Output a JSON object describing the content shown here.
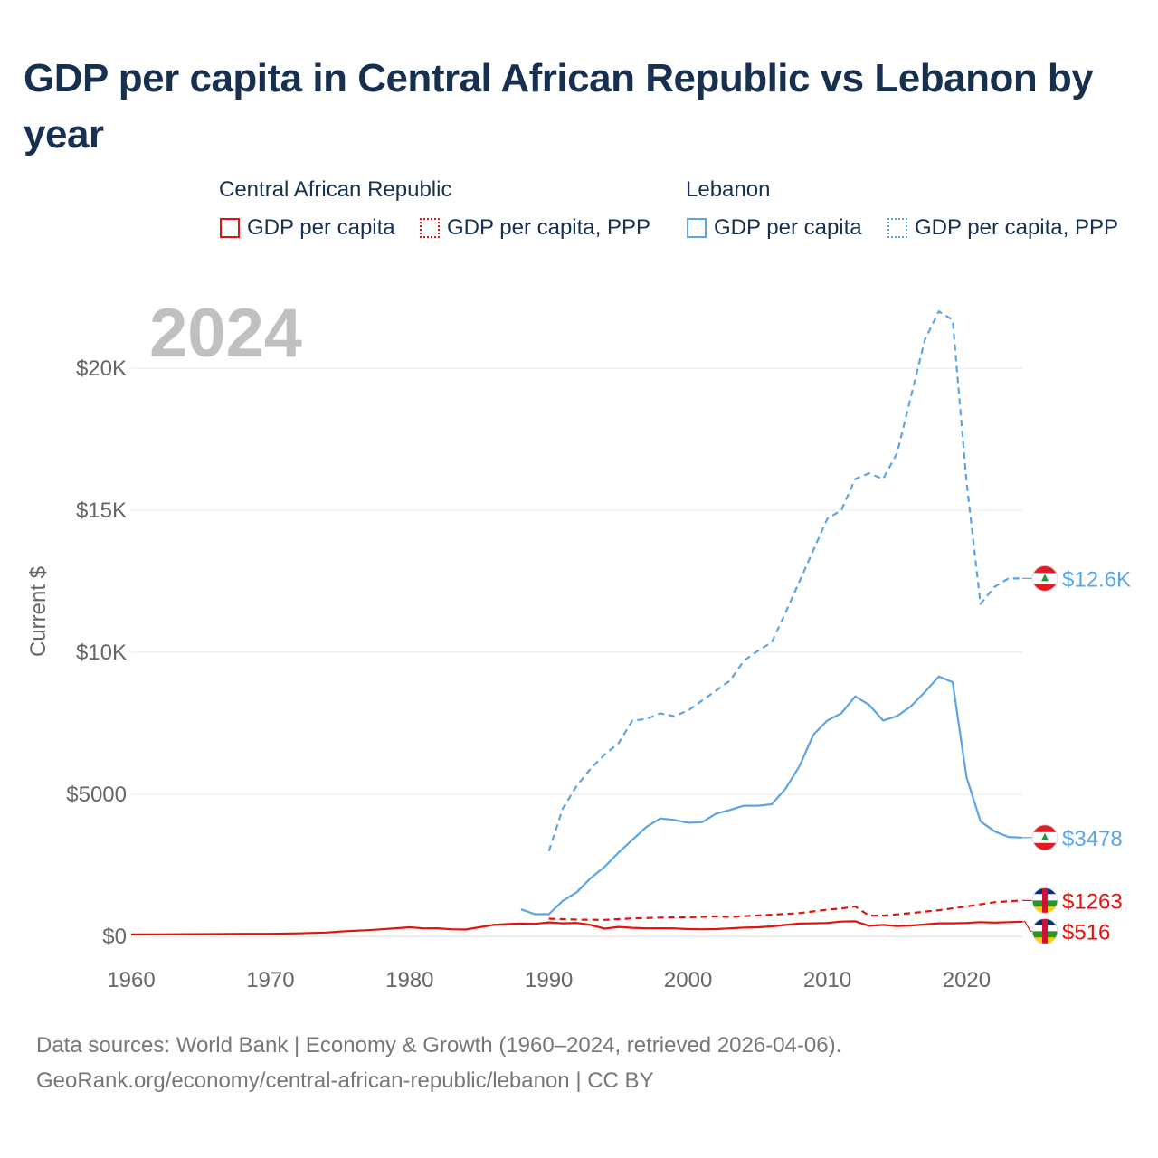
{
  "title": "GDP per capita in Central African Republic vs Lebanon by year",
  "legend": {
    "car_group": "Central African Republic",
    "leb_group": "Lebanon",
    "car_gdp": "GDP per capita",
    "car_ppp": "GDP per capita, PPP",
    "leb_gdp": "GDP per capita",
    "leb_ppp": "GDP per capita, PPP"
  },
  "colors": {
    "car": "#e3120b",
    "lebanon": "#5ba4e5",
    "year_watermark": "#c0c0c0",
    "axis_text": "#666666",
    "title": "#17304f"
  },
  "source": {
    "line1": "Data sources: World Bank | Economy & Growth (1960–2024, retrieved 2026-04-06).",
    "line2": "GeoRank.org/economy/central-african-republic/lebanon | CC BY"
  },
  "chart_data": {
    "type": "line",
    "title": "GDP per capita in Central African Republic vs Lebanon by year",
    "ylabel": "Current $",
    "xlabel": "",
    "year_watermark": "2024",
    "xlim": [
      1960,
      2024
    ],
    "ylim": [
      0,
      22000
    ],
    "x_ticks": [
      1960,
      1970,
      1980,
      1990,
      2000,
      2010,
      2020
    ],
    "y_ticks": [
      {
        "value": 0,
        "label": "$0"
      },
      {
        "value": 5000,
        "label": "$5000"
      },
      {
        "value": 10000,
        "label": "$10K"
      },
      {
        "value": 15000,
        "label": "$15K"
      },
      {
        "value": 20000,
        "label": "$20K"
      }
    ],
    "series": [
      {
        "name": "Central African Republic — GDP per capita",
        "country": "car",
        "style": "solid",
        "end_label": "$516",
        "points": [
          [
            1960,
            68
          ],
          [
            1962,
            70
          ],
          [
            1964,
            75
          ],
          [
            1966,
            80
          ],
          [
            1968,
            90
          ],
          [
            1970,
            90
          ],
          [
            1972,
            105
          ],
          [
            1974,
            135
          ],
          [
            1975,
            170
          ],
          [
            1976,
            195
          ],
          [
            1977,
            215
          ],
          [
            1978,
            250
          ],
          [
            1979,
            285
          ],
          [
            1980,
            320
          ],
          [
            1981,
            280
          ],
          [
            1982,
            285
          ],
          [
            1983,
            250
          ],
          [
            1984,
            240
          ],
          [
            1985,
            320
          ],
          [
            1986,
            400
          ],
          [
            1987,
            430
          ],
          [
            1988,
            450
          ],
          [
            1989,
            440
          ],
          [
            1990,
            490
          ],
          [
            1991,
            460
          ],
          [
            1992,
            470
          ],
          [
            1993,
            400
          ],
          [
            1994,
            270
          ],
          [
            1995,
            330
          ],
          [
            1996,
            300
          ],
          [
            1997,
            280
          ],
          [
            1998,
            285
          ],
          [
            1999,
            280
          ],
          [
            2000,
            255
          ],
          [
            2001,
            250
          ],
          [
            2002,
            255
          ],
          [
            2003,
            280
          ],
          [
            2004,
            305
          ],
          [
            2005,
            320
          ],
          [
            2006,
            350
          ],
          [
            2007,
            400
          ],
          [
            2008,
            450
          ],
          [
            2009,
            460
          ],
          [
            2010,
            470
          ],
          [
            2011,
            520
          ],
          [
            2012,
            530
          ],
          [
            2013,
            370
          ],
          [
            2014,
            400
          ],
          [
            2015,
            360
          ],
          [
            2016,
            380
          ],
          [
            2017,
            420
          ],
          [
            2018,
            460
          ],
          [
            2019,
            460
          ],
          [
            2020,
            470
          ],
          [
            2021,
            500
          ],
          [
            2022,
            480
          ],
          [
            2023,
            500
          ],
          [
            2024,
            516
          ]
        ]
      },
      {
        "name": "Central African Republic — GDP per capita, PPP",
        "country": "car",
        "style": "dashed",
        "end_label": "$1263",
        "points": [
          [
            1990,
            620
          ],
          [
            1992,
            590
          ],
          [
            1994,
            580
          ],
          [
            1996,
            630
          ],
          [
            1998,
            660
          ],
          [
            2000,
            670
          ],
          [
            2002,
            700
          ],
          [
            2003,
            680
          ],
          [
            2004,
            710
          ],
          [
            2006,
            760
          ],
          [
            2008,
            820
          ],
          [
            2010,
            940
          ],
          [
            2011,
            980
          ],
          [
            2012,
            1050
          ],
          [
            2013,
            730
          ],
          [
            2014,
            730
          ],
          [
            2016,
            820
          ],
          [
            2018,
            920
          ],
          [
            2020,
            1050
          ],
          [
            2022,
            1200
          ],
          [
            2024,
            1263
          ]
        ]
      },
      {
        "name": "Lebanon — GDP per capita",
        "country": "lebanon",
        "style": "solid",
        "end_label": "$3478",
        "points": [
          [
            1988,
            950
          ],
          [
            1989,
            780
          ],
          [
            1990,
            780
          ],
          [
            1991,
            1250
          ],
          [
            1992,
            1550
          ],
          [
            1993,
            2050
          ],
          [
            1994,
            2450
          ],
          [
            1995,
            2950
          ],
          [
            1996,
            3400
          ],
          [
            1997,
            3850
          ],
          [
            1998,
            4150
          ],
          [
            1999,
            4100
          ],
          [
            2000,
            4000
          ],
          [
            2001,
            4020
          ],
          [
            2002,
            4320
          ],
          [
            2003,
            4450
          ],
          [
            2004,
            4600
          ],
          [
            2005,
            4600
          ],
          [
            2006,
            4650
          ],
          [
            2007,
            5200
          ],
          [
            2008,
            6000
          ],
          [
            2009,
            7100
          ],
          [
            2010,
            7600
          ],
          [
            2011,
            7850
          ],
          [
            2012,
            8450
          ],
          [
            2013,
            8150
          ],
          [
            2014,
            7600
          ],
          [
            2015,
            7750
          ],
          [
            2016,
            8100
          ],
          [
            2017,
            8600
          ],
          [
            2018,
            9150
          ],
          [
            2019,
            8950
          ],
          [
            2020,
            5600
          ],
          [
            2021,
            4050
          ],
          [
            2022,
            3700
          ],
          [
            2023,
            3500
          ],
          [
            2024,
            3478
          ]
        ]
      },
      {
        "name": "Lebanon — GDP per capita, PPP",
        "country": "lebanon",
        "style": "dashed",
        "end_label": "$12.6K",
        "points": [
          [
            1990,
            3000
          ],
          [
            1991,
            4500
          ],
          [
            1992,
            5300
          ],
          [
            1993,
            5900
          ],
          [
            1994,
            6400
          ],
          [
            1995,
            6800
          ],
          [
            1996,
            7600
          ],
          [
            1997,
            7650
          ],
          [
            1998,
            7850
          ],
          [
            1999,
            7750
          ],
          [
            2000,
            7950
          ],
          [
            2001,
            8300
          ],
          [
            2002,
            8650
          ],
          [
            2003,
            9000
          ],
          [
            2004,
            9700
          ],
          [
            2005,
            10050
          ],
          [
            2006,
            10350
          ],
          [
            2007,
            11400
          ],
          [
            2008,
            12500
          ],
          [
            2009,
            13600
          ],
          [
            2010,
            14700
          ],
          [
            2011,
            15000
          ],
          [
            2012,
            16100
          ],
          [
            2013,
            16300
          ],
          [
            2014,
            16100
          ],
          [
            2015,
            17000
          ],
          [
            2016,
            19000
          ],
          [
            2017,
            21000
          ],
          [
            2018,
            22000
          ],
          [
            2019,
            21700
          ],
          [
            2020,
            16000
          ],
          [
            2021,
            11700
          ],
          [
            2022,
            12300
          ],
          [
            2023,
            12600
          ],
          [
            2024,
            12600
          ]
        ]
      }
    ]
  }
}
